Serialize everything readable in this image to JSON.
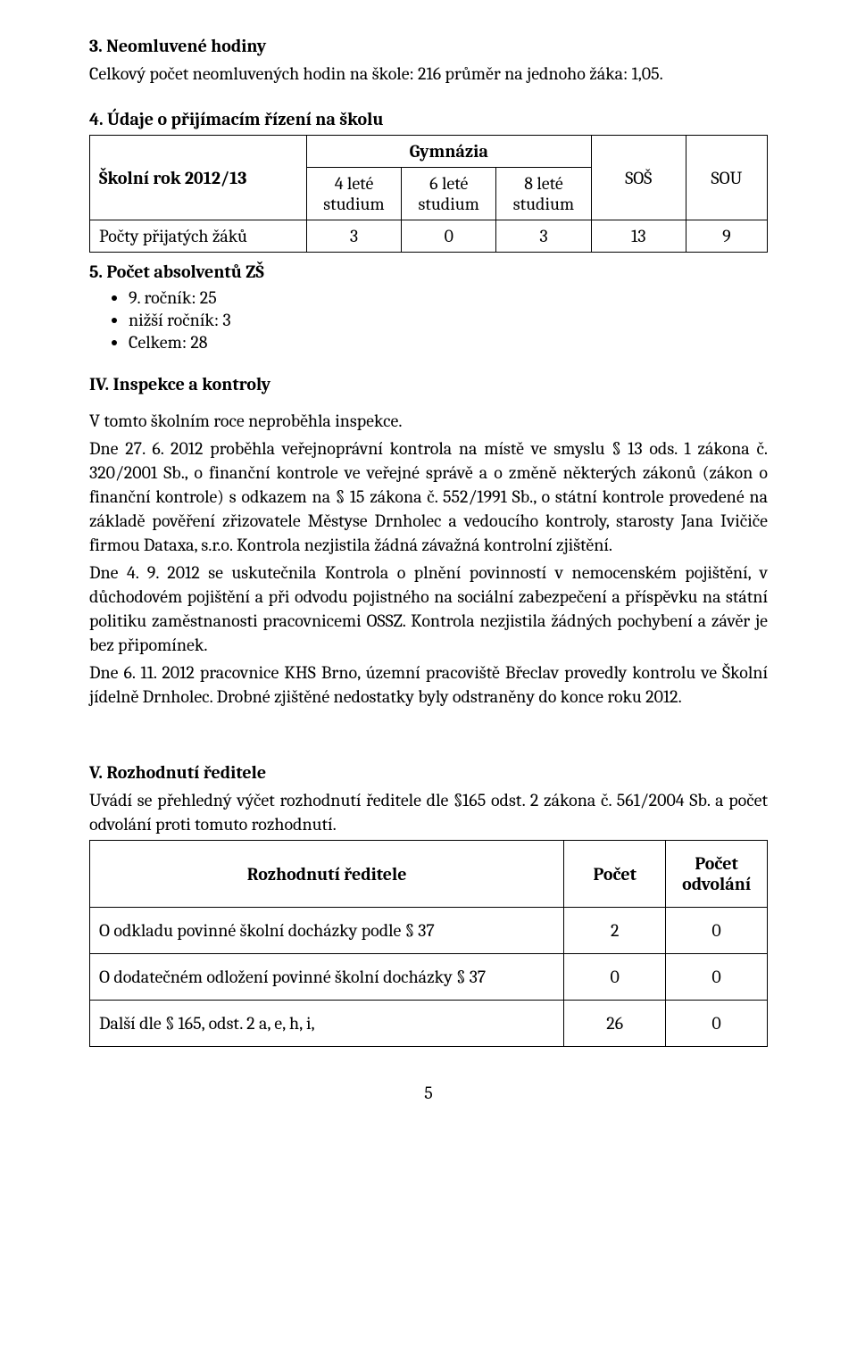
{
  "sec3": {
    "title": "3. Neomluvené hodiny",
    "line": "Celkový počet neomluvených hodin na škole: 216 průměr na jednoho žáka: 1,05."
  },
  "sec4": {
    "title": "4. Údaje o přijímacím řízení na školu"
  },
  "table1": {
    "row_header_label": "Školní rok 2012/13",
    "gymnazia_label": "Gymnázia",
    "col_4lete_a": "4 leté",
    "col_4lete_b": "studium",
    "col_6lete_a": "6 leté",
    "col_6lete_b": "studium",
    "col_8lete_a": "8 leté",
    "col_8lete_b": "studium",
    "col_sos": "SOŠ",
    "col_sou": "SOU",
    "row_label": "Počty přijatých žáků",
    "v1": "3",
    "v2": "0",
    "v3": "3",
    "v4": "13",
    "v5": "9"
  },
  "sec5": {
    "title": "5. Počet absolventů ZŠ",
    "bullets": [
      "9. ročník: 25",
      "nižší ročník: 3",
      "Celkem: 28"
    ]
  },
  "secIV": {
    "title": "IV. Inspekce a kontroly",
    "p1": "V tomto školním roce neproběhla inspekce.",
    "p2": "Dne 27. 6. 2012 proběhla veřejnoprávní kontrola na místě ve smyslu § 13 ods. 1 zákona č. 320/2001 Sb., o finanční kontrole ve veřejné správě a o změně některých zákonů (zákon o finanční kontrole) s odkazem na § 15 zákona č. 552/1991 Sb., o státní kontrole provedené na základě pověření zřizovatele Městyse Drnholec a vedoucího kontroly, starosty Jana Ivičiče firmou Dataxa, s.r.o. Kontrola nezjistila žádná závažná kontrolní zjištění.",
    "p3": "Dne 4. 9. 2012 se uskutečnila Kontrola o plnění povinností v nemocenském pojištění, v důchodovém pojištění a při odvodu pojistného na sociální zabezpečení a příspěvku na státní politiku zaměstnanosti pracovnicemi OSSZ. Kontrola nezjistila žádných pochybení a závěr je bez připomínek.",
    "p4": "Dne 6. 11. 2012 pracovnice KHS Brno, územní pracoviště Břeclav provedly kontrolu ve Školní jídelně Drnholec. Drobné zjištěné nedostatky byly odstraněny do konce roku 2012."
  },
  "secV": {
    "title": "V. Rozhodnutí ředitele",
    "intro": "Uvádí se přehledný výčet rozhodnutí ředitele dle §165 odst. 2 zákona č. 561/2004 Sb. a počet odvolání proti tomuto rozhodnutí."
  },
  "table2": {
    "h1": "Rozhodnutí ředitele",
    "h2": "Počet",
    "h3a": "Počet",
    "h3b": "odvolání",
    "r1": [
      "O odkladu povinné školní docházky podle § 37",
      "2",
      "0"
    ],
    "r2": [
      "O dodatečném odložení povinné školní docházky § 37",
      "0",
      "0"
    ],
    "r3": [
      "Další dle § 165, odst. 2 a, e, h, i,",
      "26",
      "0"
    ]
  },
  "page_number": "5"
}
